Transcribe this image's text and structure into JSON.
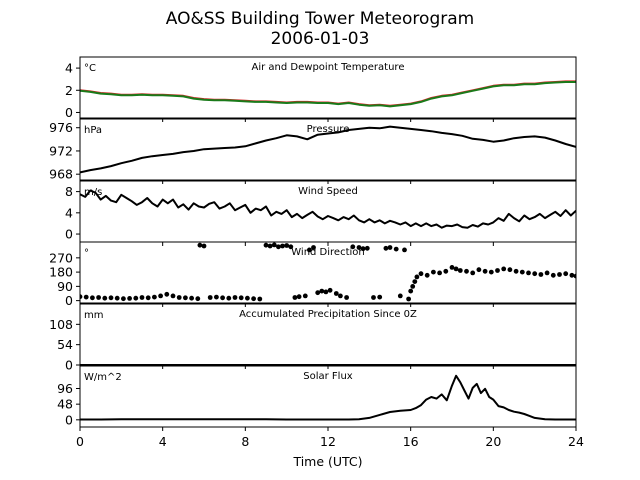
{
  "figure": {
    "title_line1": "AO&SS Building Tower Meteorogram",
    "title_line2": "2006-01-03"
  },
  "chart_data": {
    "type": "line",
    "xlabel": "Time (UTC)",
    "xlim": [
      0,
      24
    ],
    "xticks": [
      0,
      4,
      8,
      12,
      16,
      20,
      24
    ],
    "panels": [
      {
        "id": "temperature",
        "title": "Air and Dewpoint Temperature",
        "unit": "°C",
        "ylim": [
          -0.5,
          5
        ],
        "yticks": [
          0,
          2,
          4
        ],
        "series": [
          {
            "color": "#d62728",
            "style": "line",
            "x": [
              0,
              0.5,
              1,
              1.5,
              2,
              2.5,
              3,
              3.5,
              4,
              4.5,
              5,
              5.5,
              6,
              6.5,
              7,
              7.5,
              8,
              8.5,
              9,
              9.5,
              10,
              10.5,
              11,
              11.5,
              12,
              12.5,
              13,
              13.5,
              14,
              14.5,
              15,
              15.5,
              16,
              16.5,
              17,
              17.5,
              18,
              18.5,
              19,
              19.5,
              20,
              20.5,
              21,
              21.5,
              22,
              22.5,
              23,
              23.5,
              24
            ],
            "values": [
              2.0,
              1.9,
              1.75,
              1.7,
              1.6,
              1.6,
              1.65,
              1.6,
              1.6,
              1.55,
              1.5,
              1.3,
              1.2,
              1.15,
              1.15,
              1.1,
              1.05,
              1.0,
              1.0,
              0.95,
              0.9,
              0.95,
              0.95,
              0.9,
              0.9,
              0.8,
              0.9,
              0.75,
              0.65,
              0.7,
              0.6,
              0.7,
              0.8,
              1.0,
              1.3,
              1.5,
              1.6,
              1.8,
              2.0,
              2.2,
              2.4,
              2.5,
              2.5,
              2.6,
              2.6,
              2.7,
              2.75,
              2.8,
              2.8
            ]
          },
          {
            "color": "#1a7a1a",
            "style": "line",
            "x": [
              0,
              0.5,
              1,
              1.5,
              2,
              2.5,
              3,
              3.5,
              4,
              4.5,
              5,
              5.5,
              6,
              6.5,
              7,
              7.5,
              8,
              8.5,
              9,
              9.5,
              10,
              10.5,
              11,
              11.5,
              12,
              12.5,
              13,
              13.5,
              14,
              14.5,
              15,
              15.5,
              16,
              16.5,
              17,
              17.5,
              18,
              18.5,
              19,
              19.5,
              20,
              20.5,
              21,
              21.5,
              22,
              22.5,
              23,
              23.5,
              24
            ],
            "values": [
              1.95,
              1.85,
              1.7,
              1.65,
              1.55,
              1.55,
              1.6,
              1.55,
              1.55,
              1.5,
              1.45,
              1.25,
              1.15,
              1.1,
              1.1,
              1.05,
              1.0,
              0.95,
              0.95,
              0.9,
              0.85,
              0.9,
              0.9,
              0.85,
              0.85,
              0.75,
              0.85,
              0.7,
              0.6,
              0.65,
              0.55,
              0.65,
              0.75,
              0.95,
              1.25,
              1.45,
              1.55,
              1.75,
              1.95,
              2.15,
              2.35,
              2.45,
              2.45,
              2.55,
              2.55,
              2.65,
              2.7,
              2.75,
              2.75
            ]
          }
        ]
      },
      {
        "id": "pressure",
        "title": "Pressure",
        "unit": "hPa",
        "ylim": [
          967,
          977.5
        ],
        "yticks": [
          968,
          972,
          976
        ],
        "series": [
          {
            "color": "#000000",
            "style": "line",
            "x": [
              0,
              0.5,
              1,
              1.5,
              2,
              2.5,
              3,
              3.5,
              4,
              4.5,
              5,
              5.5,
              6,
              6.5,
              7,
              7.5,
              8,
              8.5,
              9,
              9.5,
              10,
              10.5,
              11,
              11.5,
              12,
              12.5,
              13,
              13.5,
              14,
              14.5,
              15,
              15.5,
              16,
              16.5,
              17,
              17.5,
              18,
              18.5,
              19,
              19.5,
              20,
              20.5,
              21,
              21.5,
              22,
              22.5,
              23,
              23.5,
              24
            ],
            "values": [
              968.3,
              968.7,
              969.0,
              969.4,
              969.9,
              970.3,
              970.8,
              971.1,
              971.3,
              971.5,
              971.8,
              972.0,
              972.3,
              972.4,
              972.5,
              972.6,
              972.8,
              973.3,
              973.8,
              974.2,
              974.7,
              974.5,
              974.0,
              974.8,
              975.0,
              975.2,
              975.6,
              975.8,
              976.0,
              975.9,
              976.2,
              976.0,
              975.8,
              975.6,
              975.4,
              975.1,
              974.9,
              974.6,
              974.1,
              973.9,
              973.6,
              973.8,
              974.2,
              974.4,
              974.5,
              974.3,
              973.8,
              973.2,
              972.7
            ]
          }
        ]
      },
      {
        "id": "wind_speed",
        "title": "Wind Speed",
        "unit": "m/s",
        "ylim": [
          -1.5,
          10
        ],
        "yticks": [
          0,
          4,
          8
        ],
        "series": [
          {
            "color": "#000000",
            "style": "line",
            "x": [
              0,
              0.25,
              0.5,
              0.75,
              1,
              1.25,
              1.5,
              1.75,
              2,
              2.25,
              2.5,
              2.75,
              3,
              3.25,
              3.5,
              3.75,
              4,
              4.25,
              4.5,
              4.75,
              5,
              5.25,
              5.5,
              5.75,
              6,
              6.25,
              6.5,
              6.75,
              7,
              7.25,
              7.5,
              7.75,
              8,
              8.25,
              8.5,
              8.75,
              9,
              9.25,
              9.5,
              9.75,
              10,
              10.25,
              10.5,
              10.75,
              11,
              11.25,
              11.5,
              11.75,
              12,
              12.25,
              12.5,
              12.75,
              13,
              13.25,
              13.5,
              13.75,
              14,
              14.25,
              14.5,
              14.75,
              15,
              15.25,
              15.5,
              15.75,
              16,
              16.25,
              16.5,
              16.75,
              17,
              17.25,
              17.5,
              17.75,
              18,
              18.25,
              18.5,
              18.75,
              19,
              19.25,
              19.5,
              19.75,
              20,
              20.25,
              20.5,
              20.75,
              21,
              21.25,
              21.5,
              21.75,
              22,
              22.25,
              22.5,
              22.75,
              23,
              23.25,
              23.5,
              23.75,
              24
            ],
            "values": [
              7.5,
              7.0,
              8.2,
              7.8,
              6.5,
              7.2,
              6.3,
              6.0,
              7.4,
              6.8,
              6.2,
              5.5,
              6.0,
              6.8,
              5.8,
              5.2,
              6.5,
              5.8,
              6.5,
              5.0,
              5.6,
              4.6,
              5.8,
              5.2,
              5.0,
              5.7,
              6.0,
              4.8,
              5.2,
              5.8,
              4.5,
              5.0,
              5.5,
              4.0,
              4.8,
              4.5,
              5.2,
              3.5,
              4.2,
              3.8,
              4.5,
              3.2,
              3.8,
              3.0,
              3.6,
              4.2,
              3.3,
              2.8,
              3.4,
              3.0,
              2.6,
              3.2,
              2.8,
              3.5,
              2.6,
              2.2,
              2.8,
              2.2,
              2.6,
              2.0,
              2.5,
              2.2,
              1.8,
              2.2,
              1.5,
              2.0,
              1.5,
              2.0,
              1.5,
              1.8,
              1.2,
              1.6,
              1.5,
              1.8,
              1.3,
              1.2,
              1.7,
              1.4,
              2.0,
              1.8,
              2.2,
              3.0,
              2.5,
              3.8,
              3.0,
              2.4,
              3.5,
              2.8,
              3.2,
              3.8,
              3.0,
              3.6,
              4.2,
              3.4,
              4.5,
              3.5,
              4.4
            ]
          }
        ]
      },
      {
        "id": "wind_direction",
        "title": "Wind Direction",
        "unit": "°",
        "ylim": [
          -15,
          370
        ],
        "yticks": [
          0,
          90,
          180,
          270
        ],
        "series": [
          {
            "color": "#000000",
            "style": "dots",
            "x": [
              0,
              0.3,
              0.6,
              0.9,
              1.2,
              1.5,
              1.8,
              2.1,
              2.4,
              2.7,
              3.0,
              3.3,
              3.6,
              3.9,
              4.2,
              4.5,
              4.8,
              5.1,
              5.4,
              5.7,
              5.8,
              6.0,
              6.3,
              6.6,
              6.9,
              7.2,
              7.5,
              7.8,
              8.1,
              8.4,
              8.7,
              9.0,
              9.2,
              9.4,
              9.6,
              9.8,
              10.0,
              10.2,
              10.4,
              10.6,
              10.9,
              11.1,
              11.3,
              11.5,
              11.7,
              11.9,
              12.1,
              12.4,
              12.6,
              12.9,
              13.2,
              13.5,
              13.7,
              13.9,
              14.2,
              14.5,
              14.8,
              15.0,
              15.3,
              15.5,
              15.7,
              15.9,
              16.0,
              16.1,
              16.2,
              16.3,
              16.5,
              16.8,
              17.1,
              17.4,
              17.7,
              18.0,
              18.2,
              18.4,
              18.7,
              19.0,
              19.3,
              19.6,
              19.9,
              20.2,
              20.5,
              20.8,
              21.1,
              21.4,
              21.7,
              22.0,
              22.3,
              22.6,
              22.9,
              23.2,
              23.5,
              23.8,
              24.0
            ],
            "values": [
              25,
              22,
              18,
              20,
              15,
              18,
              15,
              12,
              14,
              15,
              20,
              18,
              22,
              30,
              40,
              30,
              20,
              18,
              15,
              12,
              350,
              345,
              20,
              22,
              18,
              15,
              20,
              18,
              15,
              12,
              10,
              350,
              345,
              352,
              340,
              345,
              348,
              340,
              20,
              25,
              30,
              320,
              335,
              50,
              60,
              55,
              65,
              45,
              30,
              20,
              340,
              335,
              328,
              330,
              20,
              22,
              330,
              335,
              325,
              30,
              320,
              10,
              60,
              90,
              120,
              150,
              170,
              160,
              180,
              175,
              185,
              210,
              200,
              190,
              185,
              175,
              195,
              185,
              180,
              190,
              200,
              195,
              185,
              180,
              175,
              170,
              165,
              175,
              160,
              165,
              170,
              160,
              155
            ]
          }
        ]
      },
      {
        "id": "precipitation",
        "title": "Accumulated Precipitation Since 0Z",
        "unit": "mm",
        "ylim": [
          0,
          162
        ],
        "yticks": [
          0,
          54,
          108
        ],
        "series": [
          {
            "color": "#000000",
            "style": "line",
            "x": [
              0,
              24
            ],
            "values": [
              0,
              0
            ]
          }
        ]
      },
      {
        "id": "solar_flux",
        "title": "Solar Flux",
        "unit": "W/m^2",
        "ylim": [
          -22,
          165
        ],
        "yticks": [
          0,
          48,
          96
        ],
        "series": [
          {
            "color": "#000000",
            "style": "line",
            "x": [
              0,
              1,
              2,
              3,
              4,
              5,
              6,
              7,
              8,
              9,
              10,
              11,
              12,
              13,
              13.5,
              14,
              14.5,
              15,
              15.5,
              16,
              16.25,
              16.5,
              16.75,
              17,
              17.25,
              17.5,
              17.75,
              18,
              18.2,
              18.4,
              18.6,
              18.8,
              19,
              19.2,
              19.4,
              19.6,
              19.8,
              20,
              20.25,
              20.5,
              20.75,
              21,
              21.25,
              21.5,
              21.75,
              22,
              22.5,
              23,
              24
            ],
            "values": [
              1,
              1,
              2,
              2,
              2,
              2,
              2,
              2,
              2,
              2,
              1,
              1,
              1,
              1,
              2,
              6,
              15,
              24,
              28,
              30,
              36,
              45,
              62,
              70,
              65,
              78,
              60,
              105,
              135,
              115,
              90,
              65,
              98,
              110,
              82,
              95,
              70,
              62,
              42,
              38,
              30,
              25,
              22,
              18,
              12,
              6,
              2,
              1,
              1
            ]
          }
        ]
      }
    ]
  }
}
